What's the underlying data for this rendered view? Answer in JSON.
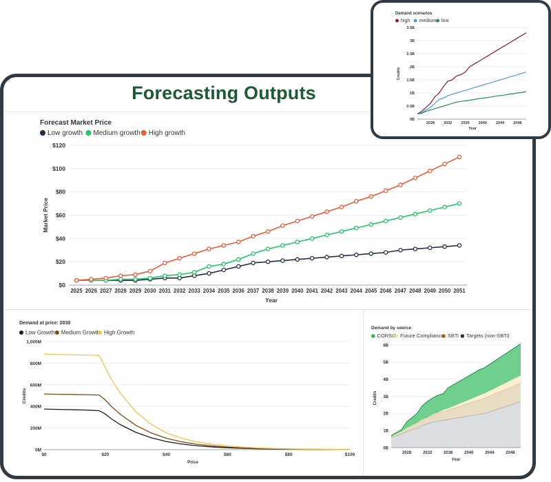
{
  "page": {
    "title": "Forecasting Outputs"
  },
  "colors": {
    "low": "#1f2f45",
    "medium": "#1fc866",
    "high": "#f05a38",
    "high_scn": "#8d1838",
    "medium_scn": "#4a9fd8",
    "low_scn": "#279148",
    "corsia": "#2daf66",
    "future": "#f7e6a4",
    "sbti": "#9a6a1c",
    "targets": "#2c3338",
    "low_dp": "#1a1a1a",
    "medium_dp": "#7a4b12",
    "high_dp": "#f4c24a"
  },
  "chart_data": [
    {
      "type": "line",
      "title": "Forecast Market Price",
      "xlabel": "Year",
      "ylabel": "Market Price",
      "x": [
        2025,
        2026,
        2027,
        2028,
        2029,
        2030,
        2031,
        2032,
        2033,
        2034,
        2035,
        2036,
        2037,
        2038,
        2039,
        2040,
        2041,
        2042,
        2043,
        2044,
        2045,
        2046,
        2047,
        2048,
        2049,
        2050,
        2051
      ],
      "y_ticks": [
        "$0",
        "$20",
        "$40",
        "$60",
        "$80",
        "$100",
        "$120"
      ],
      "ylim": [
        0,
        120
      ],
      "legend_placement": "top-left",
      "series": [
        {
          "name": "Low growth",
          "color_key": "low",
          "values": [
            4,
            4,
            4,
            4,
            4,
            5,
            6,
            6,
            8,
            10,
            13,
            16,
            19,
            20,
            21,
            22,
            23,
            24,
            25,
            26,
            27,
            28,
            30,
            31,
            32,
            33,
            34
          ]
        },
        {
          "name": "Medium growth",
          "color_key": "medium",
          "values": [
            4,
            4,
            4,
            5,
            5,
            6,
            8,
            9,
            11,
            16,
            18,
            22,
            27,
            31,
            34,
            37,
            40,
            43,
            46,
            49,
            52,
            55,
            58,
            61,
            64,
            67,
            70
          ]
        },
        {
          "name": "High growth",
          "color_key": "high",
          "values": [
            4,
            5,
            6,
            8,
            9,
            12,
            19,
            23,
            27,
            31,
            34,
            37,
            42,
            46,
            51,
            55,
            59,
            63,
            67,
            72,
            76,
            81,
            86,
            92,
            98,
            104,
            110
          ]
        }
      ]
    },
    {
      "type": "line",
      "title": "Demand at price: 2030",
      "xlabel": "Price",
      "ylabel": "Credits",
      "x_ticks": [
        "$0",
        "$20",
        "$40",
        "$60",
        "$80",
        "$100"
      ],
      "y_ticks": [
        "0M",
        "200M",
        "400M",
        "600M",
        "800M",
        "1,000M"
      ],
      "xlim": [
        0,
        100
      ],
      "ylim": [
        0,
        1000
      ],
      "legend_placement": "top-left",
      "series": [
        {
          "name": "Low Growth",
          "color_key": "low_dp",
          "x": [
            0,
            5,
            10,
            15,
            18,
            20,
            22,
            25,
            30,
            35,
            40,
            45,
            50,
            55,
            60,
            65,
            70,
            75,
            80,
            85,
            90,
            95,
            100
          ],
          "values": [
            375,
            372,
            369,
            365,
            360,
            330,
            285,
            230,
            160,
            110,
            75,
            52,
            36,
            25,
            17,
            12,
            8,
            6,
            4,
            3,
            2,
            1,
            1
          ]
        },
        {
          "name": "Medium Growth",
          "color_key": "medium_dp",
          "x": [
            0,
            5,
            10,
            15,
            18,
            20,
            22,
            25,
            30,
            35,
            40,
            45,
            50,
            55,
            60,
            65,
            70,
            75,
            80,
            85,
            90,
            95,
            100
          ],
          "values": [
            515,
            512,
            510,
            507,
            505,
            460,
            400,
            325,
            225,
            155,
            105,
            72,
            50,
            35,
            24,
            16,
            11,
            8,
            5,
            4,
            3,
            2,
            1
          ]
        },
        {
          "name": "High Growth",
          "color_key": "high_dp",
          "x": [
            0,
            5,
            10,
            15,
            18,
            19,
            20,
            22,
            25,
            30,
            35,
            40,
            45,
            50,
            55,
            60,
            65,
            70,
            75,
            80,
            85,
            90,
            95,
            100
          ],
          "values": [
            885,
            880,
            877,
            874,
            870,
            820,
            760,
            650,
            520,
            350,
            235,
            155,
            105,
            72,
            50,
            35,
            24,
            16,
            11,
            8,
            5,
            3,
            2,
            1
          ]
        }
      ]
    },
    {
      "type": "area",
      "title": "Demand by source",
      "xlabel": "Year",
      "ylabel": "Credits",
      "x_ticks": [
        "2028",
        "2032",
        "2036",
        "2040",
        "2044",
        "2048"
      ],
      "y_ticks": [
        "0B",
        "1B",
        "2B",
        "3B",
        "4B",
        "5B",
        "6B"
      ],
      "xlim": [
        2025,
        2050
      ],
      "ylim": [
        0,
        6
      ],
      "stacked": true,
      "legend_placement": "top-left",
      "x": [
        2025,
        2026,
        2027,
        2028,
        2029,
        2030,
        2031,
        2032,
        2033,
        2034,
        2035,
        2036,
        2037,
        2038,
        2039,
        2040,
        2041,
        2042,
        2043,
        2044,
        2045,
        2046,
        2047,
        2048,
        2049,
        2050
      ],
      "series": [
        {
          "name": "CORSIA",
          "color_key": "corsia",
          "values": [
            0.05,
            0.08,
            0.1,
            0.35,
            0.45,
            0.55,
            0.8,
            0.95,
            0.95,
            1.0,
            0.95,
            1.2,
            1.25,
            1.3,
            1.35,
            1.4,
            1.45,
            1.5,
            1.5,
            1.55,
            1.6,
            1.65,
            1.7,
            1.75,
            1.8,
            1.85
          ]
        },
        {
          "name": "Future Compliance",
          "color_key": "future",
          "values": [
            0,
            0,
            0,
            0,
            0,
            0,
            0,
            0,
            0.05,
            0.05,
            0.1,
            0.1,
            0.12,
            0.15,
            0.17,
            0.2,
            0.22,
            0.25,
            0.27,
            0.3,
            0.32,
            0.35,
            0.37,
            0.4,
            0.42,
            0.45
          ]
        },
        {
          "name": "SBTi",
          "color_key": "sbti",
          "values": [
            0.05,
            0.1,
            0.15,
            0.2,
            0.25,
            0.3,
            0.35,
            0.35,
            0.4,
            0.45,
            0.5,
            0.55,
            0.6,
            0.65,
            0.7,
            0.75,
            0.8,
            0.85,
            0.9,
            0.92,
            0.95,
            0.98,
            1.0,
            1.02,
            1.05,
            1.08
          ]
        },
        {
          "name": "Targets (non-SBTi)",
          "color_key": "targets",
          "values": [
            0.6,
            0.7,
            0.8,
            0.95,
            1.05,
            1.15,
            1.3,
            1.4,
            1.5,
            1.55,
            1.6,
            1.65,
            1.7,
            1.75,
            1.8,
            1.85,
            1.9,
            1.95,
            2.0,
            2.1,
            2.2,
            2.3,
            2.4,
            2.5,
            2.6,
            2.7
          ]
        }
      ]
    },
    {
      "type": "line",
      "title": "Demand scenarios",
      "xlabel": "Year",
      "ylabel": "Credits",
      "x_ticks": [
        "2028",
        "2032",
        "2036",
        "2040",
        "2044",
        "2048"
      ],
      "y_ticks": [
        "0B",
        "0.5B",
        "1B",
        "1.5B",
        "2B",
        "2.5B",
        "3B",
        "3.5B"
      ],
      "xlim": [
        2025,
        2050
      ],
      "ylim": [
        0,
        3.5
      ],
      "legend_placement": "top-left",
      "x": [
        2025,
        2026,
        2027,
        2028,
        2029,
        2030,
        2031,
        2032,
        2033,
        2034,
        2035,
        2036,
        2037,
        2038,
        2039,
        2040,
        2041,
        2042,
        2043,
        2044,
        2045,
        2046,
        2047,
        2048,
        2049,
        2050
      ],
      "series": [
        {
          "name": "high",
          "color_key": "high_scn",
          "values": [
            0.2,
            0.3,
            0.45,
            0.6,
            0.85,
            1.0,
            1.25,
            1.45,
            1.5,
            1.65,
            1.7,
            1.8,
            2.0,
            2.1,
            2.2,
            2.3,
            2.4,
            2.5,
            2.6,
            2.7,
            2.8,
            2.9,
            3.0,
            3.1,
            3.2,
            3.3
          ]
        },
        {
          "name": "medium",
          "color_key": "medium_scn",
          "values": [
            0.2,
            0.25,
            0.35,
            0.45,
            0.6,
            0.75,
            0.8,
            0.9,
            0.95,
            1.0,
            1.05,
            1.1,
            1.15,
            1.2,
            1.25,
            1.3,
            1.35,
            1.4,
            1.45,
            1.5,
            1.55,
            1.6,
            1.65,
            1.7,
            1.75,
            1.8
          ]
        },
        {
          "name": "low",
          "color_key": "low_scn",
          "values": [
            0.2,
            0.22,
            0.3,
            0.35,
            0.4,
            0.45,
            0.5,
            0.55,
            0.6,
            0.65,
            0.68,
            0.7,
            0.72,
            0.75,
            0.78,
            0.8,
            0.82,
            0.85,
            0.88,
            0.9,
            0.92,
            0.95,
            0.97,
            1.0,
            1.02,
            1.05
          ]
        }
      ]
    }
  ]
}
